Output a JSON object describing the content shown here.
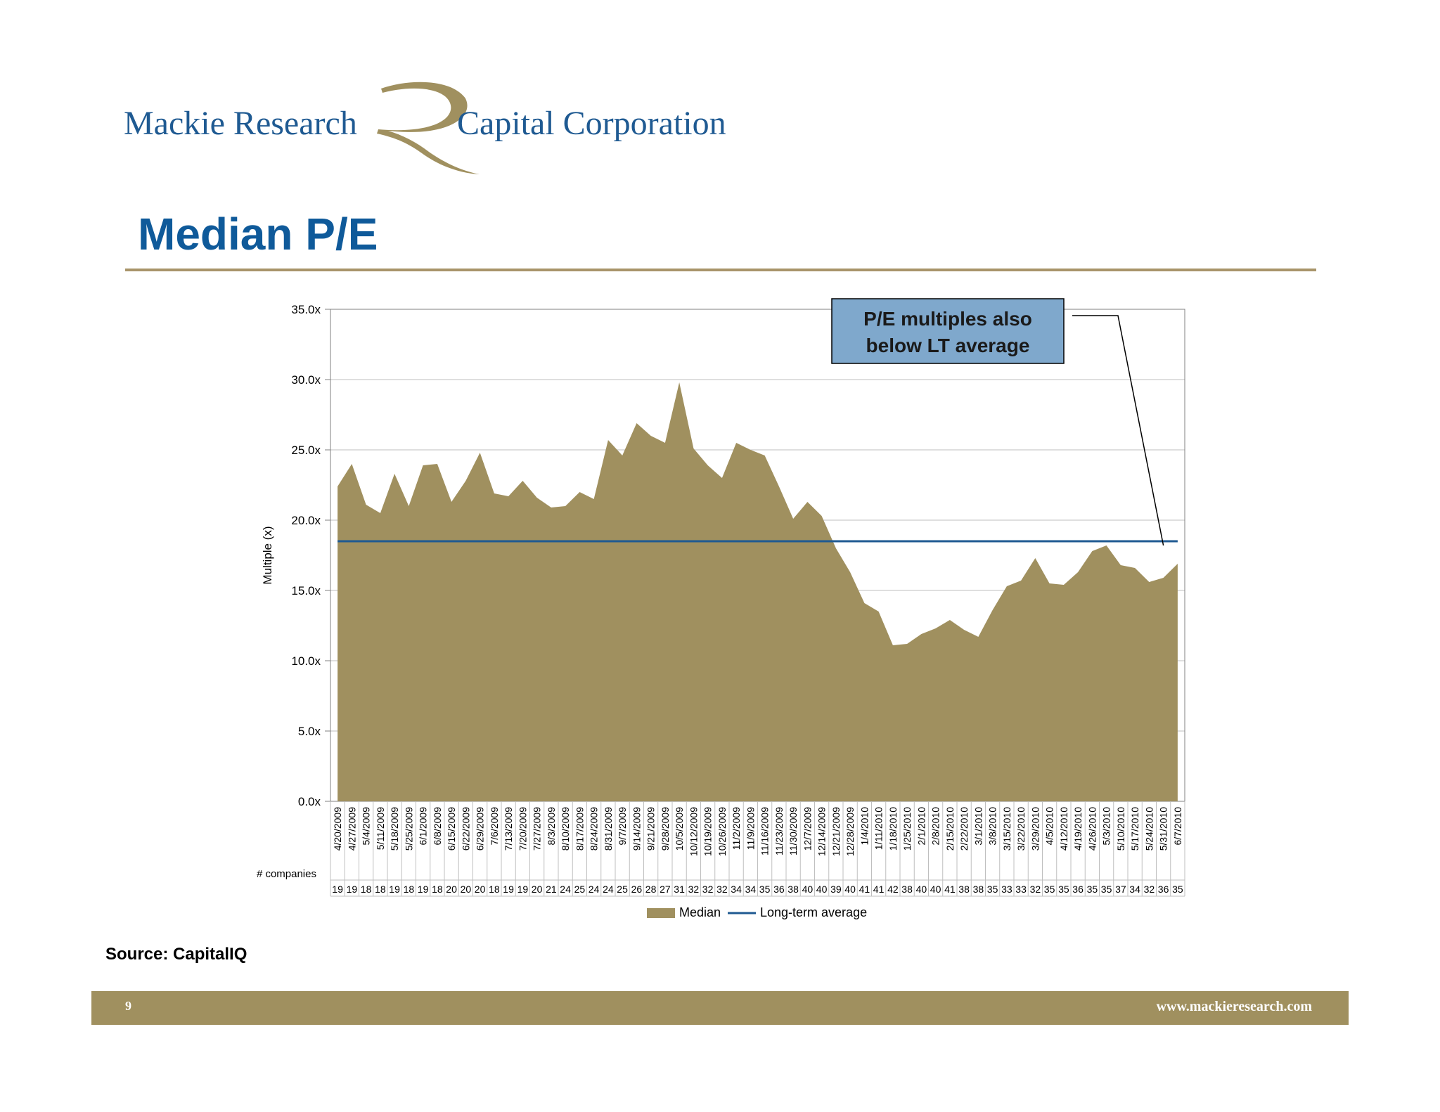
{
  "brand": {
    "left_text": "Mackie Research",
    "right_text": "Capital Corporation",
    "colors": {
      "blue": "#1f5a92",
      "gold": "#a0905f"
    }
  },
  "page": {
    "title": "Median P/E",
    "source": "Source: CapitalIQ",
    "page_number": "9",
    "website": "www.mackieresearch.com"
  },
  "chart_data": {
    "type": "area",
    "title": "",
    "ylabel": "Multiple (x)",
    "ylim": [
      0,
      35
    ],
    "y_ticks": [
      "0.0x",
      "5.0x",
      "10.0x",
      "15.0x",
      "20.0x",
      "25.0x",
      "30.0x",
      "35.0x"
    ],
    "grid": true,
    "legend_position": "bottom",
    "x": [
      "4/20/2009",
      "4/27/2009",
      "5/4/2009",
      "5/11/2009",
      "5/18/2009",
      "5/25/2009",
      "6/1/2009",
      "6/8/2009",
      "6/15/2009",
      "6/22/2009",
      "6/29/2009",
      "7/6/2009",
      "7/13/2009",
      "7/20/2009",
      "7/27/2009",
      "8/3/2009",
      "8/10/2009",
      "8/17/2009",
      "8/24/2009",
      "8/31/2009",
      "9/7/2009",
      "9/14/2009",
      "9/21/2009",
      "9/28/2009",
      "10/5/2009",
      "10/12/2009",
      "10/19/2009",
      "10/26/2009",
      "11/2/2009",
      "11/9/2009",
      "11/16/2009",
      "11/23/2009",
      "11/30/2009",
      "12/7/2009",
      "12/14/2009",
      "12/21/2009",
      "12/28/2009",
      "1/4/2010",
      "1/11/2010",
      "1/18/2010",
      "1/25/2010",
      "2/1/2010",
      "2/8/2010",
      "2/15/2010",
      "2/22/2010",
      "3/1/2010",
      "3/8/2010",
      "3/15/2010",
      "3/22/2010",
      "3/29/2010",
      "4/5/2010",
      "4/12/2010",
      "4/19/2010",
      "4/26/2010",
      "5/3/2010",
      "5/10/2010",
      "5/17/2010",
      "5/24/2010",
      "5/31/2010",
      "6/7/2010"
    ],
    "companies_label": "# companies",
    "companies": [
      19,
      19,
      18,
      18,
      19,
      18,
      19,
      18,
      20,
      20,
      20,
      18,
      19,
      19,
      20,
      21,
      24,
      25,
      24,
      24,
      25,
      26,
      28,
      27,
      31,
      32,
      32,
      32,
      34,
      34,
      35,
      36,
      38,
      40,
      40,
      39,
      40,
      41,
      41,
      42,
      38,
      40,
      40,
      41,
      38,
      38,
      35,
      33,
      33,
      32,
      35,
      35,
      36,
      35,
      35,
      37,
      34,
      32,
      36,
      35
    ],
    "series": [
      {
        "name": "Median",
        "color": "#a0905f",
        "values": [
          22.4,
          24.0,
          21.1,
          20.5,
          23.3,
          21.0,
          23.9,
          24.0,
          21.3,
          22.8,
          24.8,
          21.9,
          21.7,
          22.8,
          21.6,
          20.9,
          21.0,
          22.0,
          21.5,
          25.7,
          24.6,
          26.9,
          26.0,
          25.5,
          29.8,
          25.1,
          23.9,
          23.0,
          25.5,
          25.0,
          24.6,
          22.4,
          20.1,
          21.3,
          20.3,
          18.0,
          16.3,
          14.1,
          13.5,
          11.1,
          11.2,
          11.9,
          12.3,
          12.9,
          12.2,
          11.7,
          13.6,
          15.3,
          15.7,
          17.3,
          15.5,
          15.4,
          16.3,
          17.8,
          18.2,
          16.8,
          16.6,
          15.6,
          15.9,
          16.9
        ]
      },
      {
        "name": "Long-term average",
        "color": "#1f5a92",
        "values": [
          18.5,
          18.5,
          18.5,
          18.5,
          18.5,
          18.5,
          18.5,
          18.5,
          18.5,
          18.5,
          18.5,
          18.5,
          18.5,
          18.5,
          18.5,
          18.5,
          18.5,
          18.5,
          18.5,
          18.5,
          18.5,
          18.5,
          18.5,
          18.5,
          18.5,
          18.5,
          18.5,
          18.5,
          18.5,
          18.5,
          18.5,
          18.5,
          18.5,
          18.5,
          18.5,
          18.5,
          18.5,
          18.5,
          18.5,
          18.5,
          18.5,
          18.5,
          18.5,
          18.5,
          18.5,
          18.5,
          18.5,
          18.5,
          18.5,
          18.5,
          18.5,
          18.5,
          18.5,
          18.5,
          18.5,
          18.5,
          18.5,
          18.5,
          18.5,
          18.5
        ]
      }
    ],
    "annotation": {
      "text_line1": "P/E multiples also",
      "text_line2": "below LT average",
      "box_color": "#7fa8cc"
    }
  }
}
